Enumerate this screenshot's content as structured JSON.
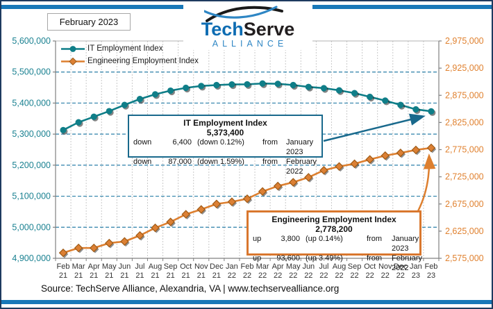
{
  "page": {
    "date_label": "February 2023",
    "source_text": "Source: TechServe Alliance, Alexandria, VA | www.techservealliance.org"
  },
  "logo": {
    "word_primary": "Tech",
    "word_secondary": "Serve",
    "subtitle": "ALLIANCE"
  },
  "legend": {
    "items": [
      {
        "label": "IT Employment Index",
        "marker": "circle-marker-icon",
        "color": "#0f7e88"
      },
      {
        "label": "Engineering Employment Index",
        "marker": "diamond-marker-icon",
        "color": "#dd7f2f"
      }
    ]
  },
  "annotations": {
    "it": {
      "title": "IT Employment Index",
      "value": "5,373,400",
      "rows": [
        {
          "dir": "down",
          "amount": "6,400",
          "pct": "(down 0.12%)",
          "from": "from",
          "period": "January 2023"
        },
        {
          "dir": "down",
          "amount": "87,000",
          "pct": "(down 1.59%)",
          "from": "from",
          "period": "February 2022"
        }
      ]
    },
    "eng": {
      "title": "Engineering Employment Index",
      "value": "2,778,200",
      "rows": [
        {
          "dir": "up",
          "amount": "3,800",
          "pct": "(up 0.14%)",
          "from": "from",
          "period": "January 2023"
        },
        {
          "dir": "up",
          "amount": "93,600",
          "pct": "(up 3.49%)",
          "from": "from",
          "period": "February 2022"
        }
      ]
    }
  },
  "colors": {
    "it_line": "#0f7e88",
    "it_axis_label": "#1a8191",
    "eng_line": "#dd7f2f",
    "eng_marker_fill": "#dc8034",
    "eng_marker_stroke": "#9e5a16",
    "eng_axis_label": "#e0812f",
    "h_gridline": "#2a7fa8",
    "v_gridline": "#c9c9c9",
    "axis_line": "#808080",
    "x_label": "#333333",
    "accent_bar": "#1878b8",
    "it_box_border": "#19698c",
    "eng_box_border": "#d9772e"
  },
  "chart_data": {
    "type": "line",
    "title": "",
    "categories": [
      "Feb 21",
      "Mar 21",
      "Apr 21",
      "May 21",
      "Jun 21",
      "Jul 21",
      "Aug 21",
      "Sep 21",
      "Oct 21",
      "Nov 21",
      "Dec 21",
      "Jan 22",
      "Feb 22",
      "Mar 22",
      "Apr 22",
      "May 22",
      "Jun 22",
      "Jul 22",
      "Aug 22",
      "Sep 22",
      "Oct 22",
      "Nov 22",
      "Dec 22",
      "Jan 23",
      "Feb 23"
    ],
    "series": [
      {
        "name": "IT Employment Index",
        "axis": "left",
        "marker": "circle",
        "values": [
          5313000,
          5338000,
          5356000,
          5374000,
          5394000,
          5413000,
          5428000,
          5440000,
          5449000,
          5455000,
          5458000,
          5460000,
          5460400,
          5463000,
          5462000,
          5458000,
          5452000,
          5448000,
          5441000,
          5432000,
          5420000,
          5408000,
          5394000,
          5379800,
          5373400
        ]
      },
      {
        "name": "Engineering Employment Index",
        "axis": "right",
        "marker": "diamond",
        "values": [
          2585000,
          2594000,
          2594000,
          2603000,
          2606000,
          2617000,
          2631000,
          2642000,
          2656000,
          2665000,
          2675000,
          2679000,
          2684600,
          2698000,
          2708000,
          2715000,
          2724000,
          2737000,
          2744000,
          2749000,
          2757000,
          2764000,
          2769000,
          2774400,
          2778200
        ]
      }
    ],
    "left_axis": {
      "min": 4900000,
      "max": 5600000,
      "step": 100000
    },
    "right_axis": {
      "min": 2575000,
      "max": 2975000,
      "step": 50000
    },
    "gridlines": true,
    "legend_position": "top-left"
  }
}
